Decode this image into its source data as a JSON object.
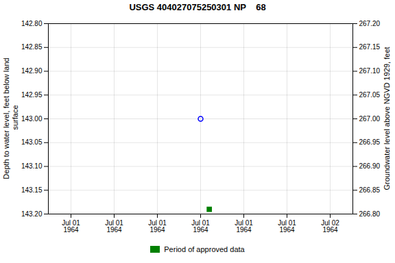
{
  "chart_data": {
    "type": "scatter",
    "title": "USGS 404027075250301 NP    68",
    "categories": [
      "Jul 01\n1964",
      "Jul 01\n1964",
      "Jul 01\n1964",
      "Jul 01\n1964",
      "Jul 01\n1964",
      "Jul 01\n1964",
      "Jul 02\n1964"
    ],
    "series": [
      {
        "color": "#0000ff",
        "marker": "open circle",
        "values": [
          null,
          null,
          null,
          143.0,
          null,
          null,
          null
        ]
      },
      {
        "name": "Period of approved data",
        "color": "#008000",
        "marker": "square",
        "values": [
          null,
          null,
          null,
          143.19,
          null,
          null,
          null
        ]
      }
    ],
    "ylabel": "Depth to water level, feet below land\n surface",
    "y2label": "Groundwater level above NGVD 1929, feet",
    "ylim": [
      143.2,
      142.8
    ],
    "yticks": [
      {
        "value": 142.8,
        "label": "142.80"
      },
      142.85,
      {
        "value": 142.9,
        "label": "142.90"
      },
      142.95,
      {
        "value": 143.0,
        "label": "143.00"
      },
      143.05,
      {
        "value": 143.1,
        "label": "143.10"
      },
      143.15,
      {
        "value": 143.2,
        "label": "143.20"
      }
    ],
    "y2lim": [
      266.8,
      267.2
    ],
    "y2ticks": [
      {
        "value": 266.8,
        "label": "266.80"
      },
      266.85,
      {
        "value": 266.9,
        "label": "266.90"
      },
      266.95,
      {
        "value": 267.0,
        "label": "267.00"
      },
      267.05,
      {
        "value": 267.1,
        "label": "267.10"
      },
      267.15,
      {
        "value": 267.2,
        "label": "267.20"
      }
    ],
    "grid": true,
    "legend": "bottom"
  }
}
